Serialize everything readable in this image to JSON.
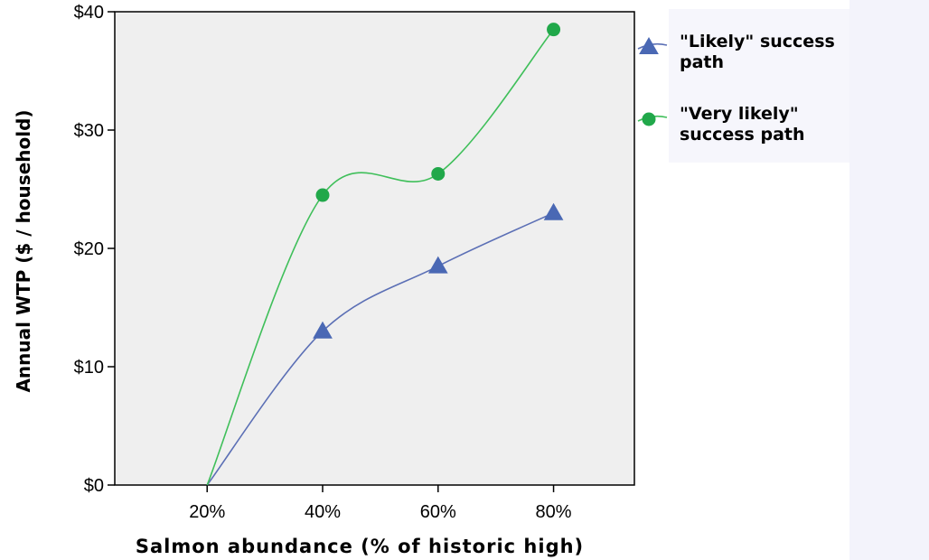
{
  "chart_data": {
    "type": "line",
    "xlabel": "Salmon abundance (% of historic high)",
    "ylabel": "Annual WTP ($ / household)",
    "categories": [
      "20%",
      "40%",
      "60%",
      "80%"
    ],
    "x": [
      20,
      40,
      60,
      80
    ],
    "xlim": [
      4,
      94
    ],
    "ylim": [
      0,
      40
    ],
    "y_ticks": [
      0,
      10,
      20,
      30,
      40
    ],
    "y_tick_labels": [
      "$0",
      "$10",
      "$20",
      "$30",
      "$40"
    ],
    "grid": false,
    "legend_position": "right",
    "series": [
      {
        "name": "\"Likely\" success path",
        "legend_lines": [
          "\"Likely\" success",
          "path"
        ],
        "marker": "triangle",
        "color": "#5b6fb5",
        "marker_color": "#4a68b4",
        "values": [
          0,
          13,
          18.5,
          23
        ]
      },
      {
        "name": "\"Very likely\" success path",
        "legend_lines": [
          "\"Very likely\"",
          "success path"
        ],
        "marker": "circle",
        "color": "#3fbf5a",
        "marker_color": "#21a84a",
        "values": [
          0,
          24.5,
          26.3,
          38.5
        ]
      }
    ]
  }
}
